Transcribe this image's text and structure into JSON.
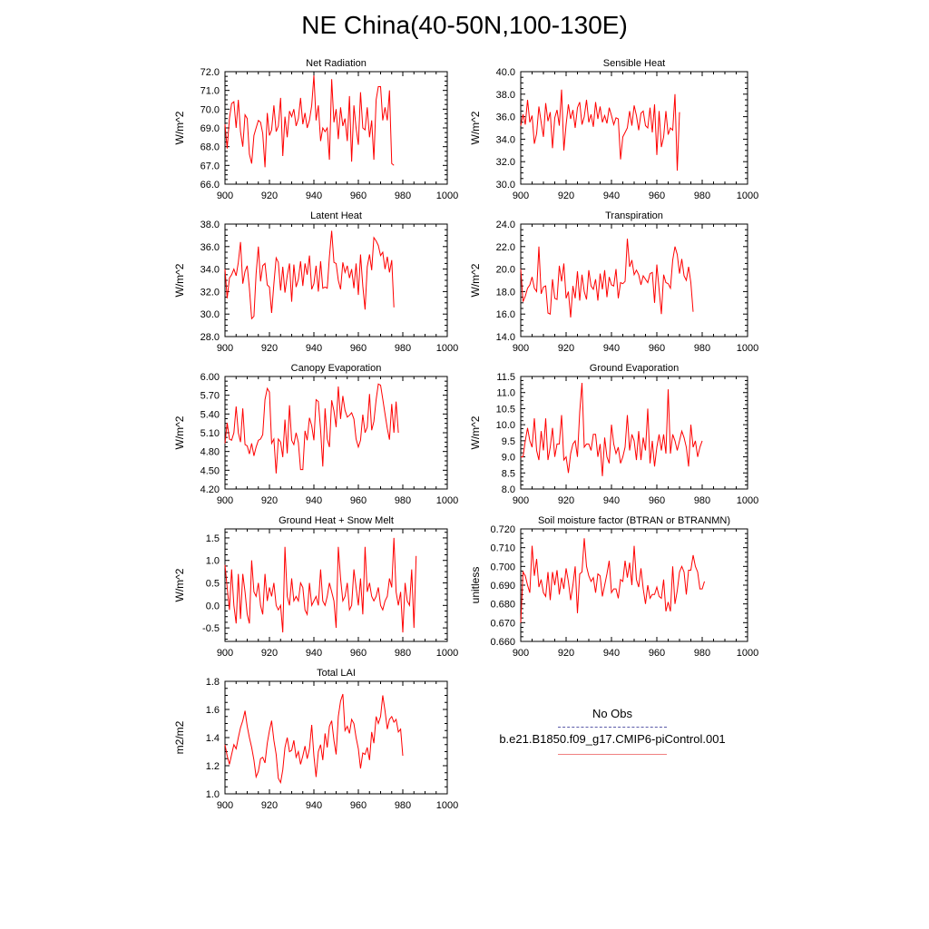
{
  "figure": {
    "title": "NE China(40-50N,100-130E)"
  },
  "legend": {
    "obs_label": "No Obs",
    "obs_color": "#5a5aa8",
    "obs_style": "dashed",
    "case_label": "b.e21.B1850.f09_g17.CMIP6-piControl.001",
    "case_color": "#f08080",
    "case_style": "solid"
  },
  "series_color": "#ff0000",
  "chart_data": [
    {
      "type": "line",
      "title": "Net Radiation",
      "ylabel": "W/m^2",
      "xlim": [
        900,
        1000
      ],
      "ylim": [
        66.0,
        72.0
      ],
      "xticks": [
        900,
        920,
        940,
        960,
        980,
        1000
      ],
      "yticks": [
        66.0,
        67.0,
        68.0,
        69.0,
        70.0,
        71.0,
        72.0
      ],
      "ytick_labels": [
        "66.0",
        "67.0",
        "68.0",
        "69.0",
        "70.0",
        "71.0",
        "72.0"
      ],
      "x_start": 900,
      "series": [
        {
          "values": [
            69.2,
            67.9,
            69.5,
            70.3,
            70.4,
            69.0,
            70.5,
            68.8,
            68.0,
            69.7,
            69.5,
            67.6,
            67.1,
            68.6,
            69.0,
            69.4,
            69.3,
            68.7,
            66.9,
            69.8,
            68.6,
            68.9,
            70.2,
            68.8,
            69.1,
            70.6,
            67.5,
            69.6,
            68.5,
            69.9,
            69.6,
            70.0,
            69.1,
            69.5,
            70.6,
            69.2,
            69.8,
            69.0,
            69.4,
            70.2,
            71.8,
            69.4,
            70.2,
            68.3,
            69.0,
            68.8,
            69.0,
            67.3,
            71.6,
            69.3,
            70.0,
            68.4,
            70.1,
            69.1,
            69.5,
            68.3,
            70.7,
            67.2,
            70.2,
            69.0,
            68.1,
            70.9,
            69.0,
            68.9,
            70.1,
            68.5,
            69.4,
            67.3,
            70.5,
            71.2,
            71.2,
            69.4,
            70.1,
            69.4,
            71.0,
            67.1,
            67.0
          ]
        }
      ]
    },
    {
      "type": "line",
      "title": "Sensible Heat",
      "ylabel": "W/m^2",
      "xlim": [
        900,
        1000
      ],
      "ylim": [
        30.0,
        40.0
      ],
      "xticks": [
        900,
        920,
        940,
        960,
        980,
        1000
      ],
      "yticks": [
        30.0,
        32.0,
        34.0,
        36.0,
        38.0,
        40.0
      ],
      "ytick_labels": [
        "30.0",
        "32.0",
        "34.0",
        "36.0",
        "38.0",
        "40.0"
      ],
      "x_start": 900,
      "series": [
        {
          "values": [
            35.2,
            36.2,
            35.3,
            37.5,
            35.5,
            36.1,
            33.6,
            34.5,
            36.9,
            35.5,
            34.2,
            37.2,
            35.6,
            36.4,
            33.2,
            35.9,
            36.6,
            35.2,
            38.4,
            33.0,
            35.3,
            37.1,
            35.8,
            36.6,
            35.0,
            36.8,
            37.3,
            35.3,
            36.0,
            37.5,
            35.5,
            36.2,
            35.1,
            37.3,
            35.8,
            36.9,
            35.5,
            36.1,
            35.4,
            36.8,
            36.1,
            35.3,
            35.9,
            35.8,
            32.2,
            34.2,
            34.6,
            35.0,
            36.5,
            35.2,
            37.0,
            36.1,
            34.8,
            36.3,
            36.5,
            35.2,
            35.0,
            36.8,
            34.6,
            37.1,
            32.6,
            36.5,
            33.3,
            34.2,
            36.5,
            34.4,
            35.0,
            34.8,
            38.0,
            31.2,
            36.4
          ]
        }
      ]
    },
    {
      "type": "line",
      "title": "Latent Heat",
      "ylabel": "W/m^2",
      "xlim": [
        900,
        1000
      ],
      "ylim": [
        28.0,
        38.0
      ],
      "xticks": [
        900,
        920,
        940,
        960,
        980,
        1000
      ],
      "yticks": [
        28.0,
        30.0,
        32.0,
        34.0,
        36.0,
        38.0
      ],
      "ytick_labels": [
        "28.0",
        "30.0",
        "32.0",
        "34.0",
        "36.0",
        "38.0"
      ],
      "x_start": 900,
      "series": [
        {
          "values": [
            34.0,
            31.4,
            33.2,
            33.5,
            34.0,
            33.4,
            34.6,
            36.4,
            32.7,
            33.8,
            34.3,
            32.3,
            29.6,
            29.8,
            33.6,
            36.0,
            32.9,
            34.3,
            34.5,
            32.6,
            32.4,
            30.1,
            32.7,
            35.0,
            34.6,
            32.1,
            34.2,
            31.9,
            33.4,
            34.5,
            31.1,
            34.4,
            32.4,
            33.1,
            34.7,
            32.5,
            34.5,
            33.5,
            35.2,
            32.2,
            32.7,
            34.3,
            32.0,
            34.7,
            32.3,
            32.4,
            32.3,
            35.1,
            37.4,
            34.6,
            34.5,
            33.0,
            32.2,
            34.6,
            33.7,
            34.3,
            33.2,
            34.0,
            32.3,
            34.5,
            31.7,
            35.3,
            32.5,
            30.4,
            34.2,
            35.3,
            33.9,
            36.8,
            36.5,
            36.1,
            35.2,
            35.5,
            34.0,
            35.1,
            33.7,
            34.8,
            30.6
          ]
        }
      ]
    },
    {
      "type": "line",
      "title": "Transpiration",
      "ylabel": "W/m^2",
      "xlim": [
        900,
        1000
      ],
      "ylim": [
        14.0,
        24.0
      ],
      "xticks": [
        900,
        920,
        940,
        960,
        980,
        1000
      ],
      "yticks": [
        14.0,
        16.0,
        18.0,
        20.0,
        22.0,
        24.0
      ],
      "ytick_labels": [
        "14.0",
        "16.0",
        "18.0",
        "20.0",
        "22.0",
        "24.0"
      ],
      "x_start": 900,
      "series": [
        {
          "values": [
            20.0,
            17.1,
            17.6,
            18.3,
            18.6,
            19.3,
            18.3,
            18.0,
            22.0,
            17.8,
            18.4,
            18.5,
            16.1,
            16.0,
            19.1,
            17.4,
            17.3,
            20.3,
            18.9,
            20.5,
            17.4,
            18.0,
            15.7,
            18.5,
            17.4,
            19.8,
            17.2,
            19.5,
            18.0,
            17.3,
            19.9,
            18.5,
            18.2,
            19.1,
            17.2,
            19.6,
            18.2,
            19.9,
            17.5,
            19.3,
            18.6,
            18.5,
            20.0,
            17.4,
            18.8,
            18.7,
            18.9,
            22.7,
            20.2,
            20.8,
            19.5,
            19.9,
            19.5,
            18.6,
            19.4,
            19.1,
            18.8,
            19.6,
            19.7,
            17.0,
            20.4,
            18.2,
            16.0,
            19.5,
            18.8,
            18.7,
            18.3,
            20.8,
            22.0,
            21.3,
            19.6,
            20.9,
            19.4,
            19.0,
            20.2,
            18.8,
            16.2
          ]
        }
      ]
    },
    {
      "type": "line",
      "title": "Canopy Evaporation",
      "ylabel": "W/m^2",
      "xlim": [
        900,
        1000
      ],
      "ylim": [
        4.2,
        6.0
      ],
      "xticks": [
        900,
        920,
        940,
        960,
        980,
        1000
      ],
      "yticks": [
        4.2,
        4.5,
        4.8,
        5.1,
        5.4,
        5.7,
        6.0
      ],
      "ytick_labels": [
        "4.20",
        "4.50",
        "4.80",
        "5.10",
        "5.40",
        "5.70",
        "6.00"
      ],
      "x_start": 900,
      "series": [
        {
          "values": [
            4.93,
            5.26,
            5.0,
            4.98,
            5.1,
            5.52,
            5.1,
            4.95,
            5.49,
            4.91,
            4.89,
            4.76,
            4.93,
            4.73,
            4.87,
            4.98,
            5.0,
            5.07,
            5.63,
            5.81,
            5.75,
            4.93,
            5.0,
            4.45,
            5.0,
            4.95,
            4.71,
            5.31,
            4.77,
            5.54,
            4.98,
            4.91,
            5.1,
            4.94,
            4.51,
            4.51,
            5.13,
            4.98,
            5.34,
            5.21,
            4.98,
            5.63,
            5.6,
            5.14,
            4.56,
            5.49,
            5.0,
            4.87,
            5.62,
            5.45,
            5.19,
            5.84,
            5.32,
            5.69,
            5.46,
            5.35,
            5.38,
            5.42,
            5.32,
            5.0,
            4.87,
            4.98,
            5.39,
            5.1,
            5.19,
            5.72,
            5.14,
            5.28,
            5.63,
            5.88,
            5.86,
            5.64,
            5.4,
            5.17,
            4.99,
            5.56,
            5.1,
            5.6,
            5.1
          ]
        }
      ]
    },
    {
      "type": "line",
      "title": "Ground Evaporation",
      "ylabel": "W/m^2",
      "xlim": [
        900,
        1000
      ],
      "ylim": [
        8.0,
        11.5
      ],
      "xticks": [
        900,
        920,
        940,
        960,
        980,
        1000
      ],
      "yticks": [
        8.0,
        8.5,
        9.0,
        9.5,
        10.0,
        10.5,
        11.0,
        11.5
      ],
      "ytick_labels": [
        "8.0",
        "8.5",
        "9.0",
        "9.5",
        "10.0",
        "10.5",
        "11.0",
        "11.5"
      ],
      "x_start": 900,
      "series": [
        {
          "values": [
            9.0,
            9.0,
            9.5,
            9.9,
            9.5,
            9.3,
            10.2,
            9.2,
            8.9,
            9.8,
            9.2,
            10.2,
            8.9,
            9.3,
            9.9,
            9.0,
            9.4,
            9.4,
            10.3,
            8.9,
            9.0,
            8.5,
            9.1,
            9.4,
            9.5,
            9.0,
            10.4,
            11.3,
            9.3,
            9.4,
            9.4,
            9.2,
            9.7,
            9.7,
            9.0,
            9.4,
            8.4,
            9.6,
            9.0,
            8.8,
            10.0,
            9.4,
            9.1,
            9.3,
            8.8,
            9.0,
            9.3,
            10.3,
            9.2,
            9.7,
            9.5,
            8.9,
            9.8,
            8.9,
            9.6,
            9.2,
            10.5,
            8.8,
            9.5,
            8.7,
            9.3,
            9.7,
            9.2,
            9.7,
            9.1,
            11.1,
            9.1,
            9.7,
            9.5,
            9.2,
            9.5,
            9.8,
            9.6,
            9.3,
            8.7,
            10.0,
            9.3,
            9.5,
            9.0,
            9.3,
            9.5
          ]
        }
      ]
    },
    {
      "type": "line",
      "title": "Ground Heat + Snow Melt",
      "ylabel": "W/m^2",
      "xlim": [
        900,
        1000
      ],
      "ylim": [
        -0.8,
        1.7
      ],
      "xticks": [
        900,
        920,
        940,
        960,
        980,
        1000
      ],
      "yticks": [
        -0.5,
        0.0,
        0.5,
        1.0,
        1.5
      ],
      "ytick_labels": [
        "-0.5",
        "0.0",
        "0.5",
        "1.0",
        "1.5"
      ],
      "x_start": 900,
      "series": [
        {
          "values": [
            0.9,
            0.4,
            -0.1,
            0.8,
            0.0,
            -0.4,
            0.7,
            -0.3,
            0.7,
            0.3,
            -0.2,
            -0.4,
            1.0,
            0.3,
            0.2,
            0.5,
            0.0,
            -0.2,
            0.7,
            0.1,
            0.4,
            0.2,
            0.5,
            0.0,
            -0.1,
            0.0,
            -0.6,
            1.3,
            0.2,
            0.0,
            0.6,
            0.1,
            0.2,
            0.1,
            0.5,
            0.4,
            -0.1,
            -0.2,
            0.5,
            0.0,
            0.1,
            0.2,
            0.0,
            0.8,
            0.1,
            0.0,
            0.2,
            0.5,
            0.3,
            0.1,
            -0.5,
            1.3,
            0.6,
            0.1,
            0.2,
            0.5,
            -0.1,
            0.0,
            0.8,
            0.4,
            0.0,
            0.6,
            -0.2,
            1.3,
            0.3,
            0.5,
            0.2,
            0.1,
            0.2,
            0.4,
            0.0,
            -0.1,
            0.1,
            0.2,
            0.6,
            0.4,
            1.5,
            0.3,
            0.0,
            0.3,
            -0.6,
            0.5,
            0.1,
            0.0,
            0.8,
            -0.5,
            1.1
          ]
        }
      ]
    },
    {
      "type": "line",
      "title": "Soil moisture factor (BTRAN or BTRANMN)",
      "ylabel": "unitless",
      "xlim": [
        900,
        1000
      ],
      "ylim": [
        0.66,
        0.72
      ],
      "xticks": [
        900,
        920,
        940,
        960,
        980,
        1000
      ],
      "yticks": [
        0.66,
        0.67,
        0.68,
        0.69,
        0.7,
        0.71,
        0.72
      ],
      "ytick_labels": [
        "0.660",
        "0.670",
        "0.680",
        "0.690",
        "0.700",
        "0.710",
        "0.720"
      ],
      "x_start": 900,
      "series": [
        {
          "values": [
            0.67,
            0.697,
            0.695,
            0.69,
            0.686,
            0.711,
            0.695,
            0.704,
            0.689,
            0.693,
            0.686,
            0.684,
            0.697,
            0.682,
            0.697,
            0.69,
            0.698,
            0.685,
            0.694,
            0.688,
            0.699,
            0.692,
            0.682,
            0.69,
            0.7,
            0.675,
            0.696,
            0.697,
            0.715,
            0.7,
            0.695,
            0.692,
            0.694,
            0.686,
            0.696,
            0.695,
            0.684,
            0.69,
            0.696,
            0.703,
            0.686,
            0.688,
            0.688,
            0.683,
            0.693,
            0.692,
            0.703,
            0.694,
            0.702,
            0.69,
            0.711,
            0.693,
            0.689,
            0.699,
            0.688,
            0.68,
            0.69,
            0.683,
            0.685,
            0.685,
            0.689,
            0.684,
            0.683,
            0.693,
            0.676,
            0.681,
            0.676,
            0.7,
            0.68,
            0.687,
            0.697,
            0.7,
            0.697,
            0.685,
            0.698,
            0.698,
            0.706,
            0.7,
            0.697,
            0.688,
            0.688,
            0.692
          ]
        }
      ]
    },
    {
      "type": "line",
      "title": "Total LAI",
      "ylabel": "m2/m2",
      "xlim": [
        900,
        1000
      ],
      "ylim": [
        1.0,
        1.8
      ],
      "xticks": [
        900,
        920,
        940,
        960,
        980,
        1000
      ],
      "yticks": [
        1.0,
        1.2,
        1.4,
        1.6,
        1.8
      ],
      "ytick_labels": [
        "1.0",
        "1.2",
        "1.4",
        "1.6",
        "1.8"
      ],
      "x_start": 900,
      "series": [
        {
          "values": [
            1.35,
            1.27,
            1.21,
            1.28,
            1.35,
            1.32,
            1.4,
            1.47,
            1.52,
            1.59,
            1.48,
            1.4,
            1.33,
            1.24,
            1.12,
            1.16,
            1.25,
            1.26,
            1.22,
            1.36,
            1.45,
            1.52,
            1.38,
            1.28,
            1.11,
            1.08,
            1.17,
            1.33,
            1.4,
            1.3,
            1.31,
            1.38,
            1.26,
            1.3,
            1.21,
            1.27,
            1.34,
            1.25,
            1.32,
            1.49,
            1.27,
            1.12,
            1.3,
            1.35,
            1.24,
            1.43,
            1.33,
            1.48,
            1.52,
            1.38,
            1.28,
            1.55,
            1.66,
            1.71,
            1.45,
            1.48,
            1.43,
            1.53,
            1.5,
            1.4,
            1.32,
            1.18,
            1.29,
            1.28,
            1.33,
            1.24,
            1.44,
            1.36,
            1.55,
            1.5,
            1.55,
            1.7,
            1.59,
            1.46,
            1.53,
            1.55,
            1.51,
            1.53,
            1.44,
            1.46,
            1.27
          ]
        }
      ]
    }
  ]
}
